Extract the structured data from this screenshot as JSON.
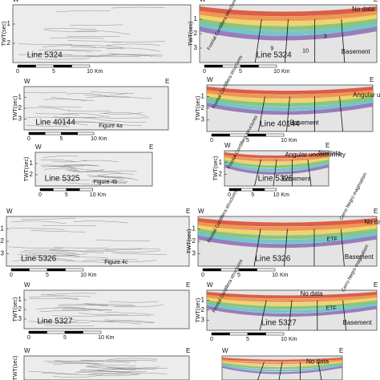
{
  "panels": [
    {
      "west": "W",
      "ticks": [
        1,
        2
      ],
      "axis_label": "TWT(sec)",
      "line": "Line 5324",
      "scale": [
        0,
        5,
        10
      ],
      "scale_unit": "Km"
    },
    {
      "west": "W",
      "east": "E",
      "ticks": [
        1,
        2,
        3
      ],
      "axis_label": "TWT(sec)",
      "line": "Line 5324",
      "scale": [
        0,
        5,
        10
      ],
      "scale_unit": "Km",
      "notes": [
        "No data",
        "Frontal Cordillera structures",
        "Basement",
        "9",
        "10",
        "3"
      ]
    },
    {
      "west": "W",
      "east": "E",
      "ticks": [
        1,
        2,
        3
      ],
      "axis_label": "TWT(sec)",
      "line": "Line 40144",
      "figure": "Figure 4a",
      "scale": [
        0,
        5,
        10
      ],
      "scale_unit": "Km"
    },
    {
      "west": "W",
      "east": "E",
      "ticks": [
        1,
        2,
        3
      ],
      "axis_label": "TWT(sec)",
      "line": "Line 40144",
      "scale": [
        0,
        5,
        10
      ],
      "scale_unit": "Km",
      "notes": [
        "Angular unconformity",
        "Frontal Cordillera structures",
        "Basement"
      ]
    },
    {
      "west": "W",
      "east": "E",
      "ticks": [
        1,
        2
      ],
      "axis_label": "TWT(sec)",
      "line": "Line 5325",
      "figure": "Figure 4b",
      "scale": [
        0,
        5,
        10
      ],
      "scale_unit": "Km"
    },
    {
      "west": "W",
      "east": "E",
      "ticks": [
        1,
        2
      ],
      "axis_label": "TWT(sec)",
      "line": "Line 5325",
      "scale": [
        0,
        5,
        10
      ],
      "scale_unit": "Km",
      "notes": [
        "Angular unconformity",
        "No data",
        "Frontal Cordillera structures",
        "Basement"
      ]
    },
    {
      "west": "W",
      "east": "E",
      "ticks": [
        1,
        2,
        3
      ],
      "axis_label": "TWT(sec)",
      "line": "Line 5326",
      "figure": "Figure 4c",
      "scale": [
        0,
        5,
        10
      ],
      "scale_unit": "Km"
    },
    {
      "west": "W",
      "east": "E",
      "ticks": [
        1,
        2,
        3
      ],
      "axis_label": "TWT(sec)",
      "line": "Line 5326",
      "scale": [
        0,
        5,
        10
      ],
      "scale_unit": "Km",
      "notes": [
        "Cerro Negro magmatism",
        "No data",
        "ETF",
        "Frontal Cordillera structures",
        "Basement"
      ]
    },
    {
      "west": "W",
      "east": "E",
      "ticks": [
        1,
        2,
        3
      ],
      "axis_label": "TWT(sec)",
      "line": "Line 5327",
      "scale": [
        0,
        5,
        10
      ],
      "scale_unit": "Km"
    },
    {
      "west": "W",
      "east": "E",
      "ticks": [
        1,
        2,
        3
      ],
      "axis_label": "TWT(sec)",
      "line": "Line 5327",
      "scale": [
        0,
        5,
        10
      ],
      "scale_unit": "Km",
      "notes": [
        "No data",
        "Cerro Negro magmatism",
        "ETF",
        "Frontal Cordillera structures",
        "Basement"
      ]
    },
    {
      "west": "W",
      "east": "E",
      "axis_label": "TWT(sec)"
    },
    {
      "west": "W",
      "east": "E",
      "notes": [
        "No data"
      ]
    }
  ]
}
